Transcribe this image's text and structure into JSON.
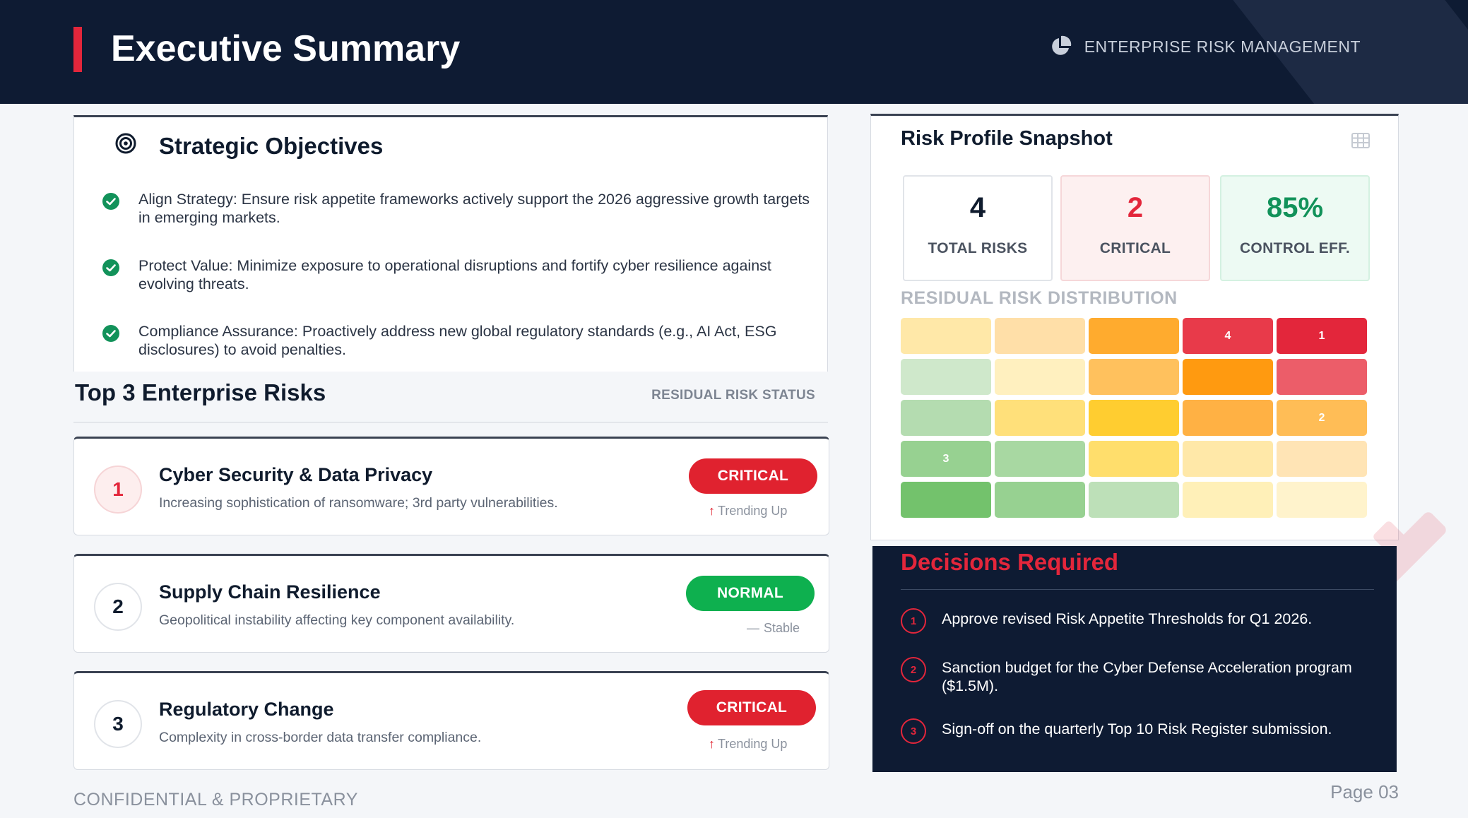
{
  "header": {
    "title": "Executive Summary",
    "brand_label": "ENTERPRISE RISK MANAGEMENT",
    "brand_icon": "pie-chart-icon"
  },
  "objectives": {
    "title": "Strategic Objectives",
    "icon": "target-icon",
    "items": [
      {
        "text": "Align Strategy: Ensure risk appetite frameworks actively support the 2026 aggressive growth targets in emerging markets."
      },
      {
        "text": "Protect Value: Minimize exposure to operational disruptions and fortify cyber resilience against evolving threats."
      },
      {
        "text": "Compliance Assurance: Proactively address new global regulatory standards (e.g., AI Act, ESG disclosures) to avoid penalties."
      }
    ]
  },
  "risks": {
    "title": "Top 3 Enterprise Risks",
    "status_label": "RESIDUAL RISK STATUS",
    "items": [
      {
        "number": "1",
        "name": "Cyber Security & Data Privacy",
        "description": "Increasing sophistication of ransomware; 3rd party vulnerabilities.",
        "status": "CRITICAL",
        "trend": "Trending Up"
      },
      {
        "number": "2",
        "name": "Supply Chain Resilience",
        "description": "Geopolitical instability affecting key component availability.",
        "status": "NORMAL",
        "trend": "Stable"
      },
      {
        "number": "3",
        "name": "Regulatory Change",
        "description": "Complexity in cross-border data transfer compliance.",
        "status": "CRITICAL",
        "trend": "Trending Up"
      }
    ]
  },
  "snapshot": {
    "title": "Risk Profile Snapshot",
    "kpis": [
      {
        "value": "4",
        "label": "TOTAL RISKS"
      },
      {
        "value": "2",
        "label": "CRITICAL"
      },
      {
        "value": "85%",
        "label": "CONTROL EFF."
      }
    ],
    "distribution_title": "RESIDUAL RISK DISTRIBUTION",
    "heatmap": {
      "rows": [
        [
          {
            "color": "#ffe8a8",
            "label": ""
          },
          {
            "color": "#ffdfa8",
            "label": ""
          },
          {
            "color": "#ffab2e",
            "label": ""
          },
          {
            "color": "#e83a4a",
            "label": "4"
          },
          {
            "color": "#e3263b",
            "label": "1"
          }
        ],
        [
          {
            "color": "#cfe8cb",
            "label": ""
          },
          {
            "color": "#fff0bf",
            "label": ""
          },
          {
            "color": "#ffc15d",
            "label": ""
          },
          {
            "color": "#ff9a10",
            "label": ""
          },
          {
            "color": "#ec5d69",
            "label": ""
          }
        ],
        [
          {
            "color": "#b4dcb0",
            "label": ""
          },
          {
            "color": "#ffe07a",
            "label": ""
          },
          {
            "color": "#ffcd30",
            "label": ""
          },
          {
            "color": "#ffb144",
            "label": ""
          },
          {
            "color": "#ffbd56",
            "label": "2"
          }
        ],
        [
          {
            "color": "#97d191",
            "label": "3"
          },
          {
            "color": "#a8d8a2",
            "label": ""
          },
          {
            "color": "#ffde6c",
            "label": ""
          },
          {
            "color": "#ffe8a8",
            "label": ""
          },
          {
            "color": "#ffe4b5",
            "label": ""
          }
        ],
        [
          {
            "color": "#73c26c",
            "label": ""
          },
          {
            "color": "#97d191",
            "label": ""
          },
          {
            "color": "#bde0b8",
            "label": ""
          },
          {
            "color": "#fff0b8",
            "label": ""
          },
          {
            "color": "#fff3cc",
            "label": ""
          }
        ]
      ]
    }
  },
  "decisions": {
    "title": "Decisions Required",
    "items": [
      {
        "number": "1",
        "text": "Approve revised Risk Appetite Thresholds for Q1 2026."
      },
      {
        "number": "2",
        "text": "Sanction budget for the Cyber Defense Acceleration program ($1.5M)."
      },
      {
        "number": "3",
        "text": "Sign-off on the quarterly Top 10 Risk Register submission."
      }
    ]
  },
  "footer": {
    "confidential": "CONFIDENTIAL & PROPRIETARY",
    "page": "Page 03"
  },
  "colors": {
    "navy": "#0e1b33",
    "accent_red": "#e3263b",
    "critical": "#e0222f",
    "normal": "#0eb04f",
    "control_green": "#12925a"
  }
}
